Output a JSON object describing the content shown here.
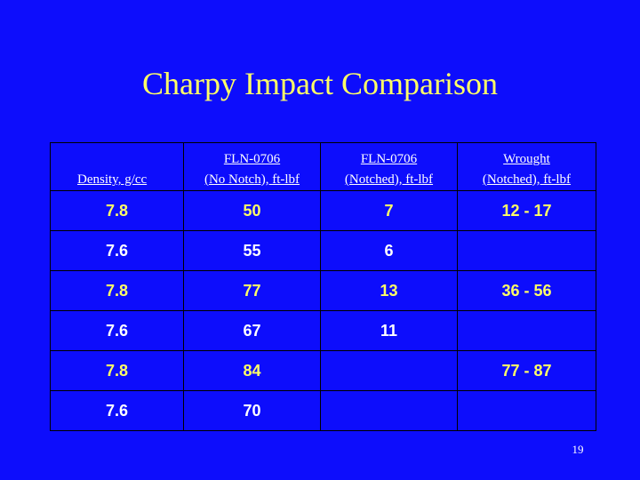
{
  "slide": {
    "title": "Charpy Impact Comparison",
    "page_number": "19",
    "text_color_highlight": "#ffff66",
    "background_color": "#0d0dfc"
  },
  "table": {
    "headers": [
      [
        "Density, g/cc"
      ],
      [
        "FLN-0706",
        "(No Notch), ft-lbf"
      ],
      [
        "FLN-0706",
        "(Notched), ft-lbf"
      ],
      [
        "Wrought",
        "(Notched), ft-lbf"
      ]
    ],
    "rows": [
      {
        "density": "7.8",
        "no_notch": "50",
        "notched": "7",
        "wrought": "12 - 17",
        "highlight": true
      },
      {
        "density": "7.6",
        "no_notch": "55",
        "notched": "6",
        "wrought": "",
        "highlight": false
      },
      {
        "density": "7.8",
        "no_notch": "77",
        "notched": "13",
        "wrought": "36 - 56",
        "highlight": true
      },
      {
        "density": "7.6",
        "no_notch": "67",
        "notched": "11",
        "wrought": "",
        "highlight": false
      },
      {
        "density": "7.8",
        "no_notch": "84",
        "notched": "",
        "wrought": "77 - 87",
        "highlight": true
      },
      {
        "density": "7.6",
        "no_notch": "70",
        "notched": "",
        "wrought": "",
        "highlight": false
      }
    ]
  }
}
